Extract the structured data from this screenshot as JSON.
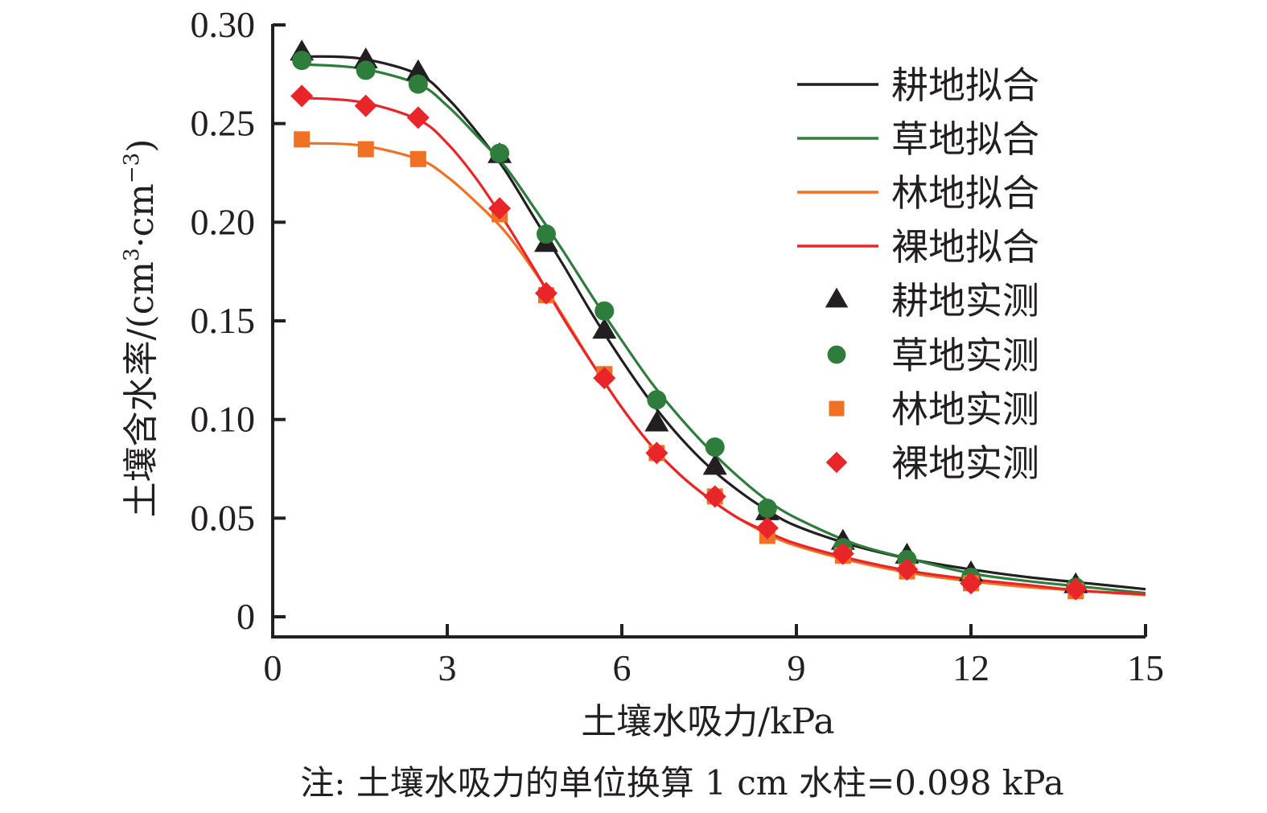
{
  "chart_data": {
    "type": "line",
    "title": "",
    "xlabel": "土壤水吸力/kPa",
    "ylabel": "土壤含水率/(cm³·cm⁻³)",
    "ylabel_parts": {
      "main": "土壤含水率/(cm",
      "sup1": "3",
      "mid": "·cm",
      "sup2": "−3",
      "end": ")"
    },
    "note": "注: 土壤水吸力的单位换算 1 cm 水柱=0.098 kPa",
    "xlim": [
      0,
      15
    ],
    "ylim": [
      0,
      0.3
    ],
    "x_ticks": [
      0,
      3,
      6,
      9,
      12,
      15
    ],
    "x_tick_labels": [
      "0",
      "3",
      "6",
      "9",
      "12",
      "15"
    ],
    "y_ticks": [
      0,
      0.05,
      0.1,
      0.15,
      0.2,
      0.25,
      0.3
    ],
    "y_tick_labels": [
      "0",
      "0.05",
      "0.10",
      "0.15",
      "0.20",
      "0.25",
      "0.30"
    ],
    "grid": false,
    "legend_position": "top-right",
    "fit_series": [
      {
        "name": "耕地拟合",
        "color": "#231f20",
        "x": [
          0.5,
          1.5,
          2.5,
          3.0,
          3.5,
          4.0,
          4.5,
          5.0,
          5.5,
          6.0,
          6.5,
          7.0,
          7.5,
          8.0,
          8.5,
          9.0,
          10,
          11,
          12,
          13,
          14,
          15
        ],
        "y": [
          0.284,
          0.283,
          0.275,
          0.263,
          0.246,
          0.226,
          0.202,
          0.178,
          0.153,
          0.13,
          0.109,
          0.091,
          0.076,
          0.064,
          0.054,
          0.046,
          0.036,
          0.029,
          0.024,
          0.02,
          0.017,
          0.014
        ]
      },
      {
        "name": "草地拟合",
        "color": "#2e7d3c",
        "x": [
          0.5,
          1.5,
          2.5,
          3.0,
          3.5,
          4.0,
          4.5,
          5.0,
          5.5,
          6.0,
          6.5,
          7.0,
          7.5,
          8.0,
          8.5,
          9.0,
          10,
          11,
          12,
          13,
          14,
          15
        ],
        "y": [
          0.28,
          0.278,
          0.27,
          0.259,
          0.244,
          0.228,
          0.207,
          0.185,
          0.162,
          0.14,
          0.119,
          0.101,
          0.085,
          0.071,
          0.059,
          0.05,
          0.037,
          0.029,
          0.022,
          0.018,
          0.015,
          0.012
        ]
      },
      {
        "name": "林地拟合",
        "color": "#f07124",
        "x": [
          0.5,
          1.5,
          2.5,
          3.0,
          3.5,
          4.0,
          4.5,
          5.0,
          5.5,
          6.0,
          6.5,
          7.0,
          7.5,
          8.0,
          8.5,
          9.0,
          10,
          11,
          12,
          13,
          14,
          15
        ],
        "y": [
          0.24,
          0.239,
          0.232,
          0.223,
          0.21,
          0.195,
          0.175,
          0.152,
          0.128,
          0.106,
          0.087,
          0.072,
          0.06,
          0.05,
          0.042,
          0.036,
          0.028,
          0.022,
          0.018,
          0.015,
          0.013,
          0.011
        ]
      },
      {
        "name": "裸地拟合",
        "color": "#e8262a",
        "x": [
          0.5,
          1.5,
          2.5,
          3.0,
          3.5,
          4.0,
          4.5,
          5.0,
          5.5,
          6.0,
          6.5,
          7.0,
          7.5,
          8.0,
          8.5,
          9.0,
          10,
          11,
          12,
          13,
          14,
          15
        ],
        "y": [
          0.263,
          0.261,
          0.252,
          0.24,
          0.222,
          0.2,
          0.176,
          0.151,
          0.128,
          0.106,
          0.087,
          0.072,
          0.06,
          0.05,
          0.043,
          0.037,
          0.029,
          0.023,
          0.019,
          0.016,
          0.013,
          0.0115
        ]
      }
    ],
    "measured_x": [
      0.5,
      1.6,
      2.5,
      3.9,
      4.7,
      5.7,
      6.6,
      7.6,
      8.5,
      9.8,
      10.9,
      12.0,
      13.8
    ],
    "measured_series": [
      {
        "name": "耕地实测",
        "color": "#231f20",
        "marker": "triangle",
        "y": [
          0.286,
          0.282,
          0.276,
          0.234,
          0.189,
          0.145,
          0.098,
          0.076,
          0.053,
          0.038,
          0.031,
          0.022,
          0.016
        ]
      },
      {
        "name": "草地实测",
        "color": "#2e7d3c",
        "marker": "circle",
        "y": [
          0.282,
          0.277,
          0.27,
          0.235,
          0.194,
          0.155,
          0.11,
          0.086,
          0.055,
          0.035,
          0.029,
          0.02,
          0.015
        ]
      },
      {
        "name": "林地实测",
        "color": "#f07124",
        "marker": "square",
        "y": [
          0.242,
          0.237,
          0.232,
          0.204,
          0.163,
          0.123,
          0.083,
          0.061,
          0.041,
          0.031,
          0.023,
          0.017,
          0.013
        ]
      },
      {
        "name": "裸地实测",
        "color": "#e8262a",
        "marker": "diamond",
        "y": [
          0.264,
          0.259,
          0.253,
          0.207,
          0.164,
          0.121,
          0.083,
          0.061,
          0.045,
          0.032,
          0.024,
          0.017,
          0.014
        ]
      }
    ]
  }
}
